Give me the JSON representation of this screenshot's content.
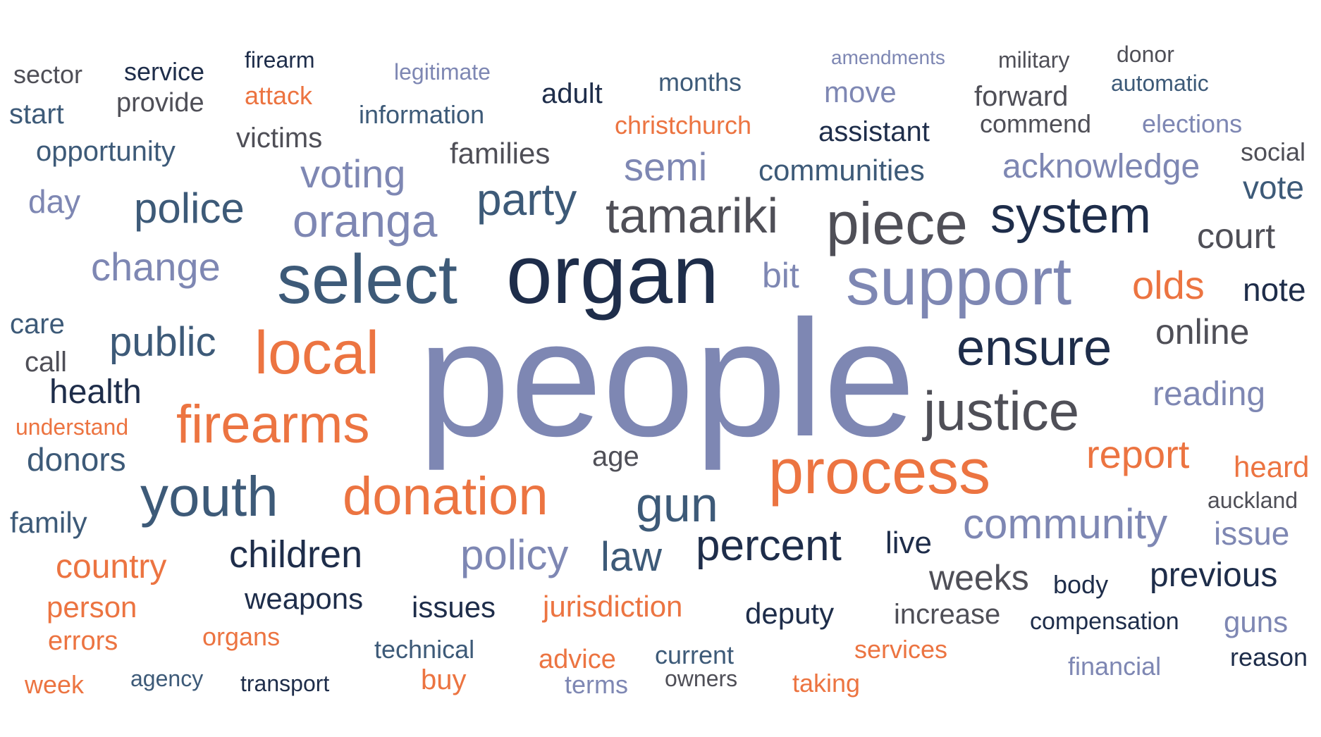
{
  "palette": {
    "navy": "#1e2d4a",
    "slate": "#3d5a78",
    "lavender": "#7e87b3",
    "orange": "#ec7441",
    "gray": "#4f4f57"
  },
  "words": [
    {
      "text": "people",
      "color": "lavender"
    },
    {
      "text": "organ",
      "color": "navy"
    },
    {
      "text": "select",
      "color": "slate"
    },
    {
      "text": "support",
      "color": "lavender"
    },
    {
      "text": "process",
      "color": "orange"
    },
    {
      "text": "piece",
      "color": "gray"
    },
    {
      "text": "local",
      "color": "orange"
    },
    {
      "text": "justice",
      "color": "gray"
    },
    {
      "text": "system",
      "color": "navy"
    },
    {
      "text": "tamariki",
      "color": "gray"
    },
    {
      "text": "donation",
      "color": "orange"
    },
    {
      "text": "youth",
      "color": "slate"
    },
    {
      "text": "firearms",
      "color": "orange"
    },
    {
      "text": "ensure",
      "color": "navy"
    },
    {
      "text": "oranga",
      "color": "lavender"
    },
    {
      "text": "gun",
      "color": "slate"
    },
    {
      "text": "party",
      "color": "slate"
    },
    {
      "text": "police",
      "color": "slate"
    },
    {
      "text": "community",
      "color": "lavender"
    },
    {
      "text": "percent",
      "color": "navy"
    },
    {
      "text": "policy",
      "color": "lavender"
    },
    {
      "text": "report",
      "color": "orange"
    },
    {
      "text": "public",
      "color": "slate"
    },
    {
      "text": "change",
      "color": "lavender"
    },
    {
      "text": "olds",
      "color": "orange"
    },
    {
      "text": "children",
      "color": "navy"
    },
    {
      "text": "semi",
      "color": "lavender"
    },
    {
      "text": "voting",
      "color": "lavender"
    },
    {
      "text": "law",
      "color": "slate"
    },
    {
      "text": "country",
      "color": "orange"
    },
    {
      "text": "acknowledge",
      "color": "lavender"
    },
    {
      "text": "reading",
      "color": "lavender"
    },
    {
      "text": "court",
      "color": "gray"
    },
    {
      "text": "online",
      "color": "gray"
    },
    {
      "text": "weeks",
      "color": "gray"
    },
    {
      "text": "previous",
      "color": "navy"
    },
    {
      "text": "bit",
      "color": "lavender"
    },
    {
      "text": "communities",
      "color": "slate"
    },
    {
      "text": "health",
      "color": "navy"
    },
    {
      "text": "vote",
      "color": "slate"
    },
    {
      "text": "note",
      "color": "navy"
    },
    {
      "text": "issue",
      "color": "lavender"
    },
    {
      "text": "heard",
      "color": "orange"
    },
    {
      "text": "donors",
      "color": "slate"
    },
    {
      "text": "family",
      "color": "slate"
    },
    {
      "text": "jurisdiction",
      "color": "orange"
    },
    {
      "text": "live",
      "color": "navy"
    },
    {
      "text": "issues",
      "color": "navy"
    },
    {
      "text": "weapons",
      "color": "navy"
    },
    {
      "text": "day",
      "color": "lavender"
    },
    {
      "text": "deputy",
      "color": "navy"
    },
    {
      "text": "move",
      "color": "lavender"
    },
    {
      "text": "families",
      "color": "gray"
    },
    {
      "text": "person",
      "color": "orange"
    },
    {
      "text": "increase",
      "color": "gray"
    },
    {
      "text": "guns",
      "color": "lavender"
    },
    {
      "text": "assistant",
      "color": "navy"
    },
    {
      "text": "adult",
      "color": "navy"
    },
    {
      "text": "opportunity",
      "color": "slate"
    },
    {
      "text": "victims",
      "color": "gray"
    },
    {
      "text": "age",
      "color": "gray"
    },
    {
      "text": "forward",
      "color": "gray"
    },
    {
      "text": "advice",
      "color": "orange"
    },
    {
      "text": "care",
      "color": "slate"
    },
    {
      "text": "start",
      "color": "slate"
    },
    {
      "text": "errors",
      "color": "orange"
    },
    {
      "text": "current",
      "color": "slate"
    },
    {
      "text": "months",
      "color": "slate"
    },
    {
      "text": "information",
      "color": "slate"
    },
    {
      "text": "services",
      "color": "orange"
    },
    {
      "text": "commend",
      "color": "gray"
    },
    {
      "text": "elections",
      "color": "lavender"
    },
    {
      "text": "social",
      "color": "gray"
    },
    {
      "text": "call",
      "color": "gray"
    },
    {
      "text": "organs",
      "color": "orange"
    },
    {
      "text": "provide",
      "color": "gray"
    },
    {
      "text": "reason",
      "color": "navy"
    },
    {
      "text": "buy",
      "color": "orange"
    },
    {
      "text": "body",
      "color": "navy"
    },
    {
      "text": "technical",
      "color": "slate"
    },
    {
      "text": "financial",
      "color": "lavender"
    },
    {
      "text": "christchurch",
      "color": "orange"
    },
    {
      "text": "attack",
      "color": "orange"
    },
    {
      "text": "week",
      "color": "orange"
    },
    {
      "text": "compensation",
      "color": "navy"
    },
    {
      "text": "service",
      "color": "navy"
    },
    {
      "text": "taking",
      "color": "orange"
    },
    {
      "text": "understand",
      "color": "orange"
    },
    {
      "text": "sector",
      "color": "gray"
    },
    {
      "text": "terms",
      "color": "lavender"
    },
    {
      "text": "automatic",
      "color": "slate"
    },
    {
      "text": "agency",
      "color": "slate"
    },
    {
      "text": "transport",
      "color": "navy"
    },
    {
      "text": "auckland",
      "color": "gray"
    },
    {
      "text": "owners",
      "color": "gray"
    },
    {
      "text": "firearm",
      "color": "navy"
    },
    {
      "text": "legitimate",
      "color": "lavender"
    },
    {
      "text": "military",
      "color": "gray"
    },
    {
      "text": "donor",
      "color": "gray"
    },
    {
      "text": "amendments",
      "color": "lavender"
    }
  ]
}
